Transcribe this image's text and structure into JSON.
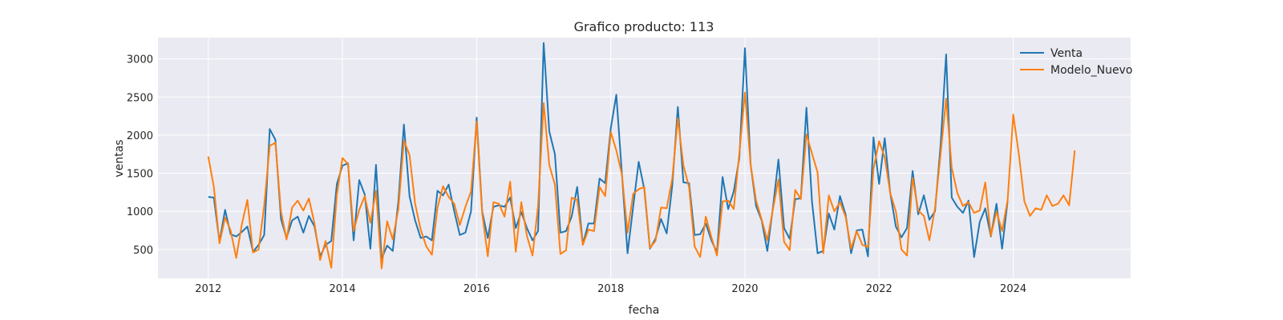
{
  "chart_data": {
    "type": "line",
    "title": "Grafico producto: 113",
    "xlabel": "fecha",
    "ylabel": "ventas",
    "xlim": [
      2011.25,
      2025.75
    ],
    "ylim": [
      120,
      3280
    ],
    "xticks": [
      2012,
      2014,
      2016,
      2018,
      2020,
      2022,
      2024
    ],
    "yticks": [
      500,
      1000,
      1500,
      2000,
      2500,
      3000
    ],
    "grid": true,
    "legend_position": "top-right",
    "plot_background": "#eaeaf2",
    "start_year": 2012,
    "series": [
      {
        "name": "Venta",
        "color": "#1f77b4",
        "values": [
          1190,
          1180,
          600,
          1020,
          700,
          670,
          730,
          800,
          470,
          560,
          690,
          2080,
          1940,
          900,
          650,
          880,
          930,
          720,
          940,
          800,
          410,
          560,
          610,
          1360,
          1600,
          1630,
          620,
          1410,
          1220,
          510,
          1610,
          380,
          550,
          480,
          1130,
          2140,
          1200,
          880,
          650,
          670,
          620,
          1270,
          1210,
          1350,
          1000,
          690,
          720,
          1000,
          2230,
          1000,
          650,
          1060,
          1080,
          1060,
          1180,
          780,
          990,
          780,
          620,
          740,
          3210,
          2050,
          1750,
          720,
          740,
          930,
          1320,
          570,
          840,
          840,
          1430,
          1370,
          2090,
          2530,
          1490,
          450,
          1060,
          1650,
          1290,
          510,
          640,
          900,
          710,
          1340,
          2370,
          1380,
          1370,
          690,
          700,
          840,
          620,
          460,
          1450,
          1030,
          1260,
          1700,
          3140,
          1620,
          1070,
          880,
          480,
          1040,
          1680,
          780,
          640,
          1160,
          1170,
          2360,
          1130,
          450,
          480,
          970,
          760,
          1200,
          960,
          450,
          750,
          760,
          410,
          1970,
          1360,
          1960,
          1240,
          800,
          660,
          780,
          1530,
          960,
          1210,
          890,
          1000,
          1870,
          3060,
          1180,
          1060,
          980,
          1140,
          400,
          860,
          1040,
          670,
          1100,
          510,
          1140
        ]
      },
      {
        "name": "Modelo_Nuevo",
        "color": "#ff7f0e",
        "values": [
          1720,
          1320,
          580,
          920,
          750,
          390,
          830,
          1150,
          460,
          500,
          1080,
          1860,
          1900,
          1000,
          630,
          1050,
          1140,
          1010,
          1170,
          840,
          360,
          610,
          260,
          1220,
          1700,
          1620,
          740,
          1020,
          1200,
          850,
          1270,
          250,
          870,
          630,
          1030,
          1930,
          1740,
          1100,
          760,
          540,
          430,
          1050,
          1330,
          1190,
          1100,
          820,
          1060,
          1260,
          2180,
          980,
          410,
          1120,
          1100,
          930,
          1390,
          470,
          1120,
          680,
          420,
          1070,
          2420,
          1610,
          1350,
          440,
          490,
          1180,
          1150,
          560,
          760,
          740,
          1320,
          1200,
          2040,
          1800,
          1480,
          720,
          1230,
          1290,
          1320,
          520,
          610,
          1050,
          1040,
          1430,
          2220,
          1600,
          1320,
          540,
          400,
          930,
          660,
          420,
          1130,
          1140,
          1030,
          1760,
          2560,
          1620,
          1140,
          890,
          620,
          1020,
          1420,
          600,
          490,
          1280,
          1160,
          2010,
          1760,
          1510,
          450,
          1210,
          1000,
          1120,
          930,
          510,
          740,
          560,
          530,
          1560,
          1920,
          1710,
          1240,
          1000,
          500,
          420,
          1440,
          1010,
          940,
          620,
          1040,
          1750,
          2480,
          1570,
          1240,
          1070,
          1120,
          980,
          1010,
          1380,
          680,
          1000,
          740,
          1150,
          2270,
          1750,
          1130,
          940,
          1040,
          1020,
          1210,
          1070,
          1100,
          1210,
          1080,
          1800
        ]
      }
    ]
  }
}
